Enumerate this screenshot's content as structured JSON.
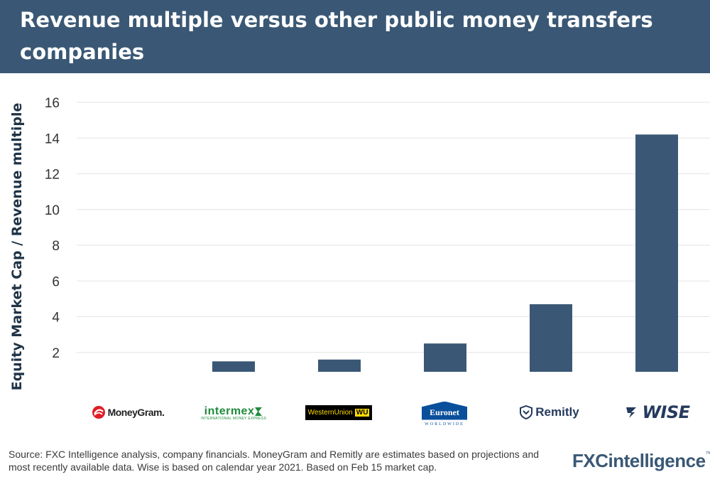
{
  "header": {
    "title": "Revenue multiple versus other public money transfers companies"
  },
  "chart_data": {
    "type": "bar",
    "title": "Revenue multiple versus other public money transfers companies",
    "ylabel": "Equity Market Cap / Revenue multiple",
    "xlabel": "",
    "categories": [
      "MoneyGram",
      "Intermex",
      "Western Union",
      "Euronet",
      "Remitly",
      "Wise"
    ],
    "values": [
      0.9,
      1.5,
      1.6,
      2.5,
      4.7,
      14.2
    ],
    "bar_colors": [
      "#f6923a",
      "#3a5875",
      "#3a5875",
      "#3a5875",
      "#3a5875",
      "#3a5875"
    ],
    "ylim": [
      0,
      16
    ],
    "yticks": [
      0,
      2,
      4,
      6,
      8,
      10,
      12,
      14,
      16
    ],
    "grid": true,
    "legend": "none"
  },
  "logos": {
    "moneygram": {
      "text": "MoneyGram.",
      "icon": "moneygram-swirl-icon",
      "color": "#e01e26"
    },
    "intermex": {
      "text": "intermex",
      "subtext": "INTERNATIONAL MONEY EXPRESS",
      "icon": "green-arrow-icon",
      "color": "#1f8a3c"
    },
    "western_union": {
      "text": "WesternUnion",
      "badge": "WU",
      "color": "#ffdd00",
      "bg": "#000000"
    },
    "euronet": {
      "text": "Euronet",
      "subtext": "WORLDWIDE",
      "color": "#0a4f9c"
    },
    "remitly": {
      "text": "Remitly",
      "icon": "shield-icon",
      "color": "#253a5e"
    },
    "wise": {
      "text": "WISE",
      "icon": "wise-flag-icon",
      "color": "#253a5e"
    }
  },
  "footer": {
    "source": "Source: FXC Intelligence analysis, company financials. MoneyGram and Remitly are estimates based on projections and most recently available data. Wise is based on calendar year 2021. Based on Feb 15 market cap.",
    "brand_a": "FXC",
    "brand_b": "intelligence",
    "brand_tm": "™"
  }
}
